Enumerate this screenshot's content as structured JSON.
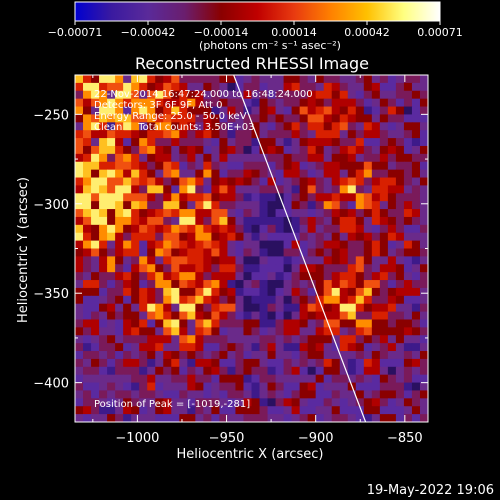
{
  "colorbar": {
    "ticks": [
      "-0.00071",
      "-0.00042",
      "-0.00014",
      "0.00014",
      "0.00042",
      "0.00071"
    ],
    "unit_label": "(photons cm⁻² s⁻¹ asec⁻²)",
    "colors": [
      "#0000d0",
      "#3a1aa0",
      "#5a2a9a",
      "#6a1e6e",
      "#8a0000",
      "#c00000",
      "#e83a10",
      "#ff8000",
      "#ffc000",
      "#ffff80",
      "#ffffff"
    ]
  },
  "chart_data": {
    "type": "heatmap",
    "title": "Reconstructed RHESSI Image",
    "xlabel": "Heliocentric X (arcsec)",
    "ylabel": "Heliocentric Y (arcsec)",
    "xlim": [
      -1035,
      -837
    ],
    "ylim": [
      -422,
      -228
    ],
    "xticks": [
      -1000,
      -950,
      -900,
      -850
    ],
    "yticks": [
      -250,
      -300,
      -350,
      -400
    ],
    "xtick_labels": [
      "−1000",
      "−950",
      "−900",
      "−850"
    ],
    "ytick_labels": [
      "−250",
      "−300",
      "−350",
      "−400"
    ],
    "limb_line": [
      [
        -946,
        -228
      ],
      [
        -872,
        -422
      ]
    ],
    "annotations": [
      "22-Nov-2014 16:47:24.000 to 16:48:24.000",
      "Detectors: 3F 6F 9F, Att 0",
      "Energy Range: 25.0 - 50.0 keV",
      "Clean     Total counts: 3.50E+03"
    ],
    "peak_label": "Position of Peak = [-1019,-281]"
  },
  "footer": {
    "date": "19-May-2022 19:06"
  }
}
